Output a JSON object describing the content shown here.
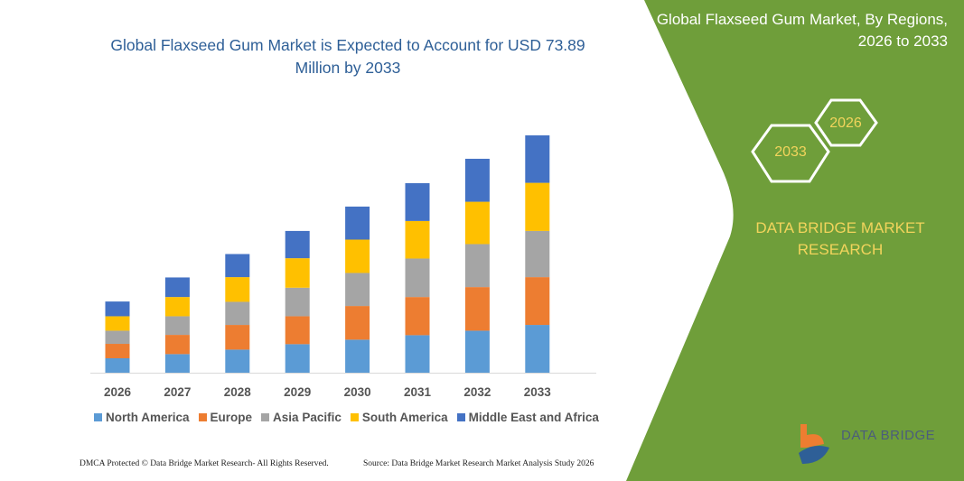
{
  "title": "Global Flaxseed Gum Market is Expected to Account for USD 73.89 Million by 2033",
  "side_panel": {
    "title": "Global Flaxseed Gum Market, By Regions, 2026 to 2033",
    "hex_years": [
      "2033",
      "2026"
    ],
    "brand": "DATA BRIDGE MARKET RESEARCH",
    "logo_text": "DATA BRIDGE",
    "color": "#6f9e3a"
  },
  "footer": {
    "copyright": "DMCA Protected © Data Bridge Market Research- All Rights Reserved.",
    "source": "Source: Data Bridge Market Research Market Analysis Study 2026"
  },
  "chart_data": {
    "type": "bar",
    "stacked": true,
    "categories": [
      "2026",
      "2027",
      "2028",
      "2029",
      "2030",
      "2031",
      "2032",
      "2033"
    ],
    "series": [
      {
        "name": "North America",
        "color": "#5b9bd5",
        "values": [
          4.5,
          5.8,
          7.2,
          8.9,
          10.3,
          11.7,
          13.1,
          14.9
        ]
      },
      {
        "name": "Europe",
        "color": "#ed7d31",
        "values": [
          4.5,
          6.0,
          7.7,
          8.7,
          10.5,
          11.9,
          13.6,
          14.9
        ]
      },
      {
        "name": "Asia Pacific",
        "color": "#a5a5a5",
        "values": [
          4.1,
          5.8,
          7.2,
          8.9,
          10.3,
          12.0,
          13.4,
          14.4
        ]
      },
      {
        "name": "South America",
        "color": "#ffc000",
        "values": [
          4.5,
          6.0,
          7.7,
          9.2,
          10.4,
          11.7,
          13.2,
          15.0
        ]
      },
      {
        "name": "Middle East and Africa",
        "color": "#4472c4",
        "values": [
          4.6,
          6.1,
          7.2,
          8.5,
          10.3,
          11.8,
          13.4,
          14.8
        ]
      }
    ],
    "units": "USD Million",
    "ylim": [
      0,
      74
    ],
    "grid": false,
    "legend": "bottom"
  }
}
